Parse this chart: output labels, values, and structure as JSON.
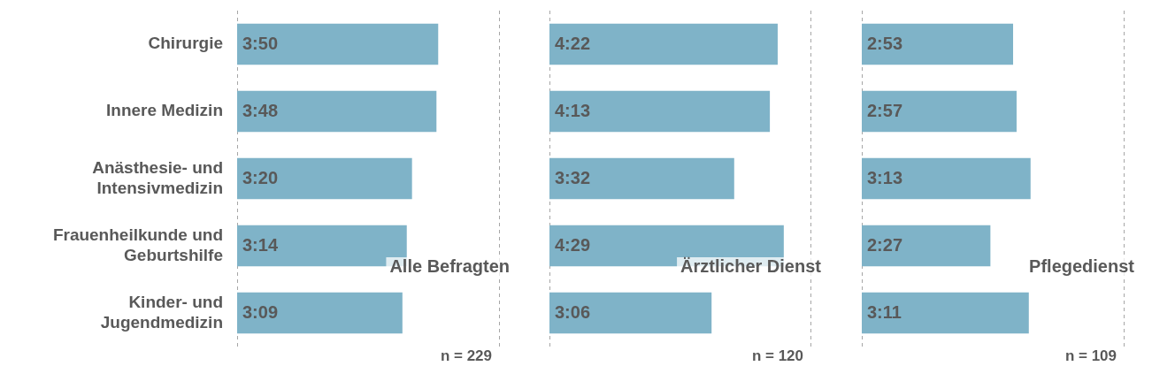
{
  "chart_data": [
    {
      "type": "bar",
      "orientation": "horizontal",
      "categories": [
        "Chirurgie",
        "Innere Medizin",
        "Anästhesie- und Intensivmedizin",
        "Frauenheilkunde und Geburtshilfe",
        "Kinder- und Jugendmedizin"
      ],
      "values": [
        230,
        228,
        200,
        194,
        189
      ],
      "value_labels": [
        "3:50",
        "3:48",
        "3:20",
        "3:14",
        "3:09"
      ],
      "color": "#7fb3c8",
      "xlim": [
        0,
        300
      ],
      "tick_labels": "y",
      "annotations": [
        "Alle Befragten",
        "n = 229"
      ]
    },
    {
      "type": "bar",
      "orientation": "horizontal",
      "categories": [
        null,
        null,
        null,
        null,
        null
      ],
      "values": [
        262,
        253,
        212,
        269,
        186
      ],
      "value_labels": [
        "4:22",
        "4:13",
        "3:32",
        "4:29",
        "3:06"
      ],
      "color": "#7fb3c8",
      "xlim": [
        0,
        300
      ],
      "tick_labels": false,
      "annotations": [
        "Ärztlicher Dienst",
        "n = 120"
      ]
    },
    {
      "type": "bar",
      "orientation": "horizontal",
      "categories": [
        null,
        null,
        null,
        null,
        null
      ],
      "values": [
        173,
        177,
        193,
        147,
        191
      ],
      "value_labels": [
        "2:53",
        "2:57",
        "3:13",
        "2:27",
        "3:11"
      ],
      "color": "#7fb3c8",
      "xlim": [
        0,
        300
      ],
      "tick_labels": false,
      "annotations": [
        "Pflegedienst",
        "n = 109"
      ]
    }
  ]
}
